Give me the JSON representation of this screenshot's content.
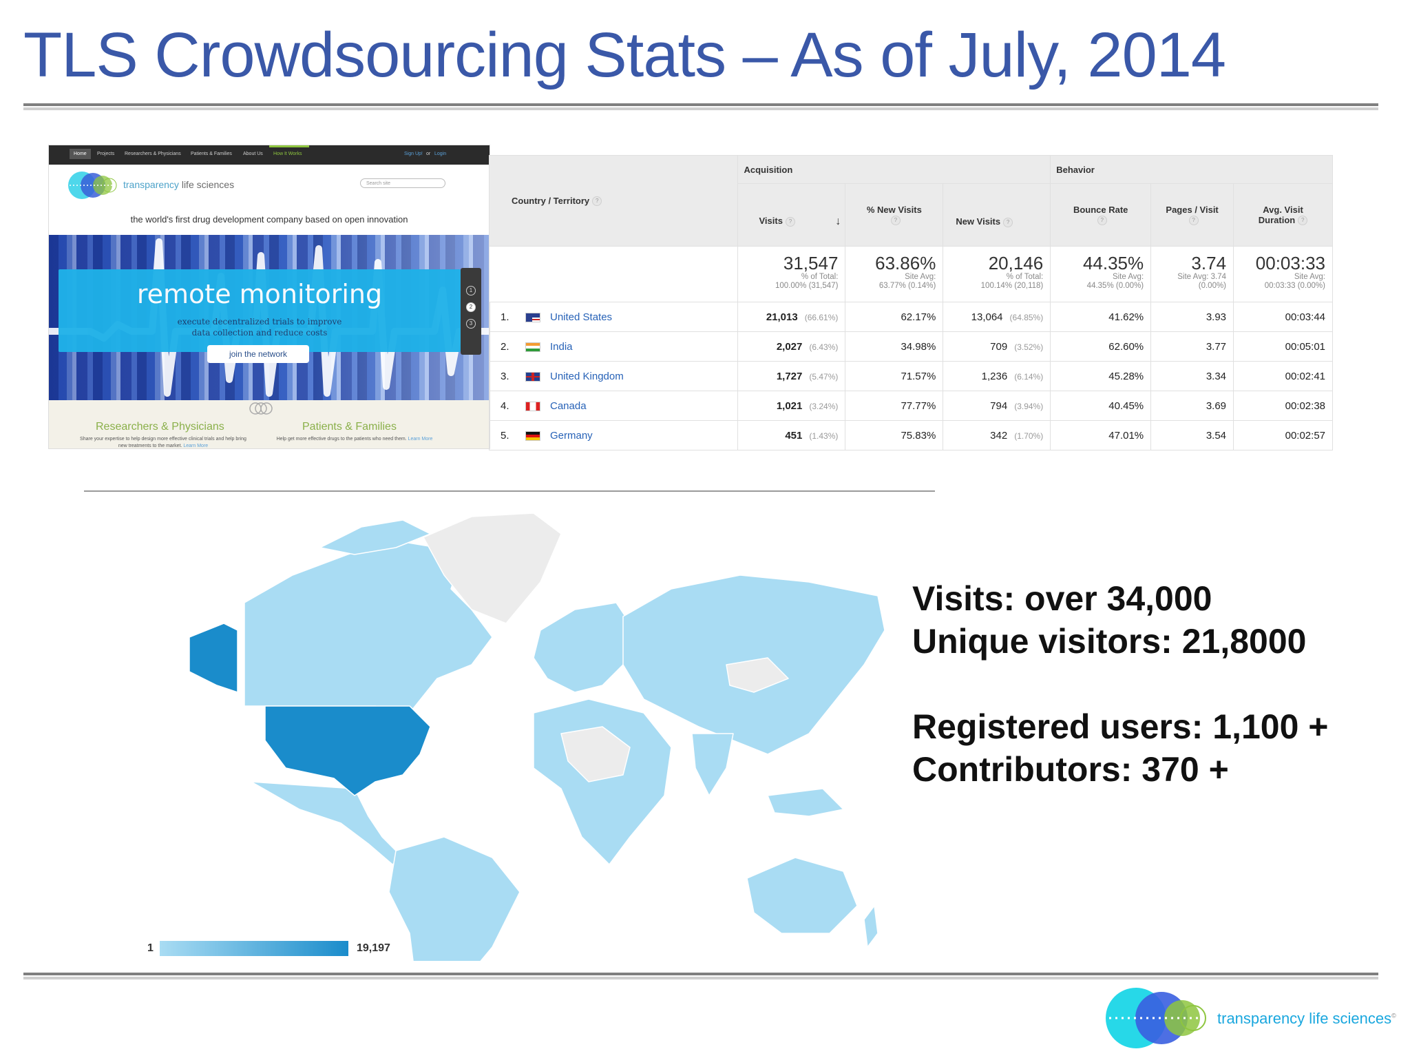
{
  "slide": {
    "title": "TLS Crowdsourcing Stats – As of July, 2014"
  },
  "website": {
    "nav": [
      "Home",
      "Projects",
      "Researchers & Physicians",
      "Patients & Families",
      "About Us",
      "How It Works"
    ],
    "signup": "Sign Up!",
    "or": "or",
    "login": "Login",
    "logo_text_brand": "transparency",
    "logo_text_rest": " life sciences",
    "search_placeholder": "Search site",
    "tagline": "the world's first drug development company based on open innovation",
    "hero_title": "remote monitoring",
    "hero_subtitle": "execute decentralized trials to improve\ndata collection and reduce costs",
    "hero_button": "join the network",
    "slider": [
      "1",
      "2",
      "3"
    ],
    "col1_title": "Researchers & Physicians",
    "col1_text": "Share your expertise to help design more effective clinical trials and help bring new treatments to the market.",
    "col2_title": "Patients & Families",
    "col2_text": "Help get more effective drugs to the patients who need them.",
    "learn_more": "Learn More"
  },
  "analytics": {
    "group_acquisition": "Acquisition",
    "group_behavior": "Behavior",
    "col_country": "Country / Territory",
    "col_visits": "Visits",
    "col_new_visits_pct": "% New Visits",
    "col_new_visits": "New Visits",
    "col_bounce": "Bounce Rate",
    "col_pages": "Pages / Visit",
    "col_duration_1": "Avg. Visit",
    "col_duration_2": "Duration",
    "totals": {
      "visits": "31,547",
      "visits_sub1": "% of Total:",
      "visits_sub2": "100.00% (31,547)",
      "new_pct": "63.86%",
      "new_pct_sub1": "Site Avg:",
      "new_pct_sub2": "63.77% (0.14%)",
      "new": "20,146",
      "new_sub1": "% of Total:",
      "new_sub2": "100.14% (20,118)",
      "bounce": "44.35%",
      "bounce_sub1": "Site Avg:",
      "bounce_sub2": "44.35% (0.00%)",
      "pages": "3.74",
      "pages_sub1": "Site Avg: 3.74",
      "pages_sub2": "(0.00%)",
      "duration": "00:03:33",
      "duration_sub1": "Site Avg:",
      "duration_sub2": "00:03:33 (0.00%)"
    },
    "rows": [
      {
        "rank": "1.",
        "country": "United States",
        "visits": "21,013",
        "visits_pct": "(66.61%)",
        "new_pct": "62.17%",
        "new": "13,064",
        "new_share": "(64.85%)",
        "bounce": "41.62%",
        "pages": "3.93",
        "duration": "00:03:44"
      },
      {
        "rank": "2.",
        "country": "India",
        "visits": "2,027",
        "visits_pct": "(6.43%)",
        "new_pct": "34.98%",
        "new": "709",
        "new_share": "(3.52%)",
        "bounce": "62.60%",
        "pages": "3.77",
        "duration": "00:05:01"
      },
      {
        "rank": "3.",
        "country": "United Kingdom",
        "visits": "1,727",
        "visits_pct": "(5.47%)",
        "new_pct": "71.57%",
        "new": "1,236",
        "new_share": "(6.14%)",
        "bounce": "45.28%",
        "pages": "3.34",
        "duration": "00:02:41"
      },
      {
        "rank": "4.",
        "country": "Canada",
        "visits": "1,021",
        "visits_pct": "(3.24%)",
        "new_pct": "77.77%",
        "new": "794",
        "new_share": "(3.94%)",
        "bounce": "40.45%",
        "pages": "3.69",
        "duration": "00:02:38"
      },
      {
        "rank": "5.",
        "country": "Germany",
        "visits": "451",
        "visits_pct": "(1.43%)",
        "new_pct": "75.83%",
        "new": "342",
        "new_share": "(1.70%)",
        "bounce": "47.01%",
        "pages": "3.54",
        "duration": "00:02:57"
      }
    ]
  },
  "map": {
    "legend_min": "1",
    "legend_max": "19,197",
    "colors": {
      "low": "#a9dcf3",
      "high": "#1a8ccb",
      "none": "#ececec"
    }
  },
  "stats": {
    "visits": "Visits: over 34,000",
    "unique": "Unique visitors: 21,8000",
    "registered": "Registered users: 1,100 +",
    "contributors": "Contributors: 370 +"
  },
  "footer_logo": {
    "brand": "transparency",
    "rest": " life sciences",
    "mark": "©"
  }
}
